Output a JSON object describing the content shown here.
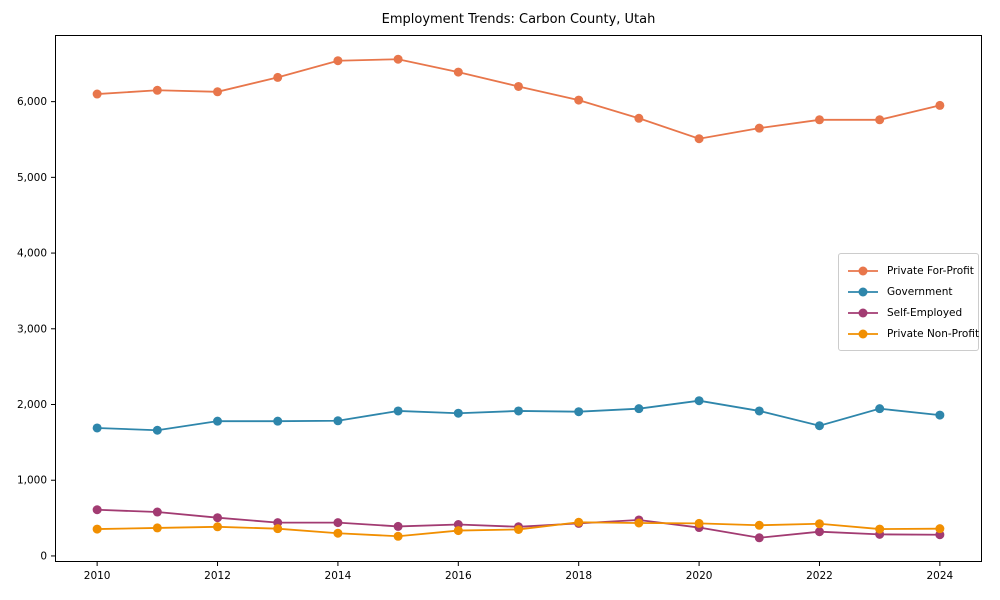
{
  "title": "Employment Trends: Carbon County, Utah",
  "colors": {
    "private_for_profit": "#e8764b",
    "government": "#2e86ab",
    "self_employed": "#a23b72",
    "private_non_profit": "#f18f01",
    "axis": "#000000",
    "legend_border": "#cccccc",
    "background": "#ffffff"
  },
  "chart_data": {
    "type": "line",
    "title": "Employment Trends: Carbon County, Utah",
    "xlabel": "",
    "ylabel": "",
    "x": [
      2010,
      2011,
      2012,
      2013,
      2014,
      2015,
      2016,
      2017,
      2018,
      2019,
      2020,
      2021,
      2022,
      2023,
      2024
    ],
    "series": [
      {
        "name": "Private For-Profit",
        "color": "#e8764b",
        "values": [
          6100,
          6150,
          6130,
          6320,
          6540,
          6560,
          6390,
          6200,
          6020,
          5780,
          5510,
          5650,
          5760,
          5760,
          5950
        ]
      },
      {
        "name": "Government",
        "color": "#2e86ab",
        "values": [
          1690,
          1660,
          1780,
          1780,
          1785,
          1915,
          1885,
          1915,
          1905,
          1945,
          2050,
          1915,
          1720,
          1945,
          1860
        ]
      },
      {
        "name": "Self-Employed",
        "color": "#a23b72",
        "values": [
          610,
          580,
          505,
          440,
          440,
          390,
          415,
          385,
          430,
          475,
          375,
          240,
          320,
          285,
          280
        ]
      },
      {
        "name": "Private Non-Profit",
        "color": "#f18f01",
        "values": [
          355,
          370,
          385,
          360,
          300,
          260,
          335,
          350,
          445,
          435,
          430,
          405,
          425,
          355,
          360
        ]
      }
    ],
    "xticks": [
      2010,
      2012,
      2014,
      2016,
      2018,
      2020,
      2022,
      2024
    ],
    "xtick_labels": [
      "2010",
      "2012",
      "2014",
      "2016",
      "2018",
      "2020",
      "2022",
      "2024"
    ],
    "yticks": [
      0,
      1000,
      2000,
      3000,
      4000,
      5000,
      6000
    ],
    "ytick_labels": [
      "0",
      "1,000",
      "2,000",
      "3,000",
      "4,000",
      "5,000",
      "6,000"
    ],
    "xlim": [
      2009.3,
      2024.7
    ],
    "ylim": [
      -80,
      6880
    ],
    "grid": false,
    "marker": "circle",
    "legend_position": "center right"
  }
}
